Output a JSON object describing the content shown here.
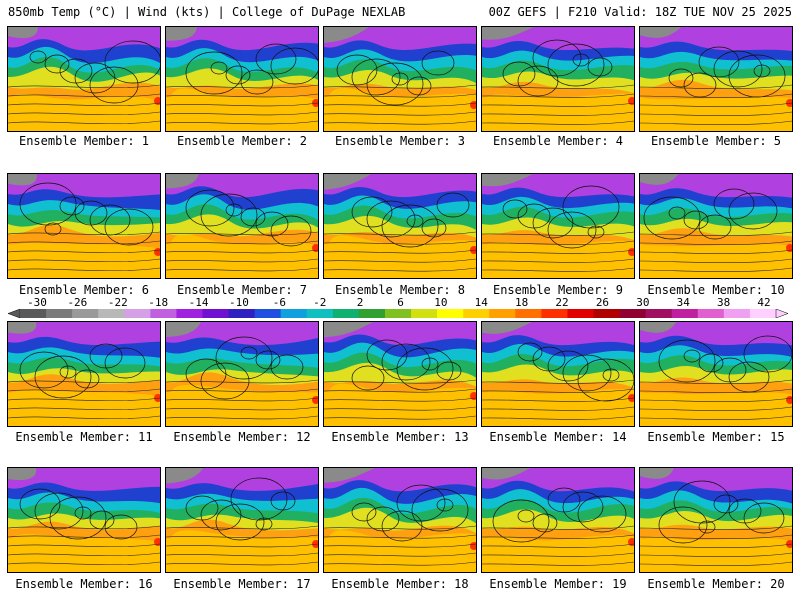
{
  "header": {
    "left": "850mb Temp (°C) | Wind (kts) | College of DuPage NEXLAB",
    "right": "00Z GEFS | F210 Valid: 18Z TUE NOV 25 2025"
  },
  "colorbar": {
    "tick_labels": [
      "-30",
      "-26",
      "-22",
      "-18",
      "-14",
      "-10",
      "-6",
      "-2",
      "2",
      "6",
      "10",
      "14",
      "18",
      "22",
      "26",
      "30",
      "34",
      "38",
      "42"
    ],
    "colors": [
      "#5a5a5a",
      "#7b7b7b",
      "#9a9a9a",
      "#b8b8b8",
      "#d6a0e6",
      "#c060e0",
      "#a020e0",
      "#7010d0",
      "#3020c0",
      "#2050e0",
      "#10a0e0",
      "#10c0c0",
      "#10b070",
      "#30a030",
      "#80c020",
      "#d0e010",
      "#ffff00",
      "#ffd000",
      "#ffa000",
      "#ff7000",
      "#ff3000",
      "#e00000",
      "#b00000",
      "#900030",
      "#a01060",
      "#c020a0",
      "#e060d0",
      "#f0a0f0",
      "#ffd0ff"
    ]
  },
  "panels": [
    {
      "label": "Ensemble Member: 1"
    },
    {
      "label": "Ensemble Member: 2"
    },
    {
      "label": "Ensemble Member: 3"
    },
    {
      "label": "Ensemble Member: 4"
    },
    {
      "label": "Ensemble Member: 5"
    },
    {
      "label": "Ensemble Member: 6"
    },
    {
      "label": "Ensemble Member: 7"
    },
    {
      "label": "Ensemble Member: 8"
    },
    {
      "label": "Ensemble Member: 9"
    },
    {
      "label": "Ensemble Member: 10"
    },
    {
      "label": "Ensemble Member: 11"
    },
    {
      "label": "Ensemble Member: 12"
    },
    {
      "label": "Ensemble Member: 13"
    },
    {
      "label": "Ensemble Member: 14"
    },
    {
      "label": "Ensemble Member: 15"
    },
    {
      "label": "Ensemble Member: 16"
    },
    {
      "label": "Ensemble Member: 17"
    },
    {
      "label": "Ensemble Member: 18"
    },
    {
      "label": "Ensemble Member: 19"
    },
    {
      "label": "Ensemble Member: 20"
    }
  ],
  "map_palette": {
    "gray": "#8a8a8a",
    "purple": "#b040e0",
    "violet": "#7020d0",
    "blue": "#2040d0",
    "cyan": "#10c0d0",
    "green": "#20b060",
    "yellow": "#e0e020",
    "gold": "#ffc000",
    "orange": "#ffa010",
    "red": "#ff3000"
  }
}
